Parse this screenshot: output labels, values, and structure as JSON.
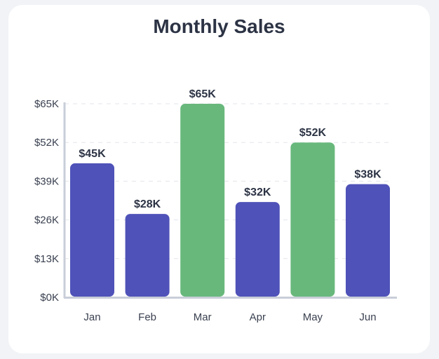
{
  "colors": {
    "primary": "#4f52b8",
    "highlight": "#68b87c",
    "grid": "#e3e6ec",
    "axis": "#c9ced8"
  },
  "chart_data": {
    "type": "bar",
    "title": "Monthly Sales",
    "categories": [
      "Jan",
      "Feb",
      "Mar",
      "Apr",
      "May",
      "Jun"
    ],
    "values": [
      45,
      28,
      65,
      32,
      52,
      38
    ],
    "value_labels": [
      "$45K",
      "$28K",
      "$65K",
      "$32K",
      "$52K",
      "$38K"
    ],
    "highlighted": [
      false,
      false,
      true,
      false,
      true,
      false
    ],
    "yticks": [
      0,
      13,
      26,
      39,
      52,
      65
    ],
    "ytick_labels": [
      "$0K",
      "$13K",
      "$26K",
      "$39K",
      "$52K",
      "$65K"
    ],
    "ylim": [
      0,
      65
    ],
    "grid": true,
    "legend": false
  }
}
